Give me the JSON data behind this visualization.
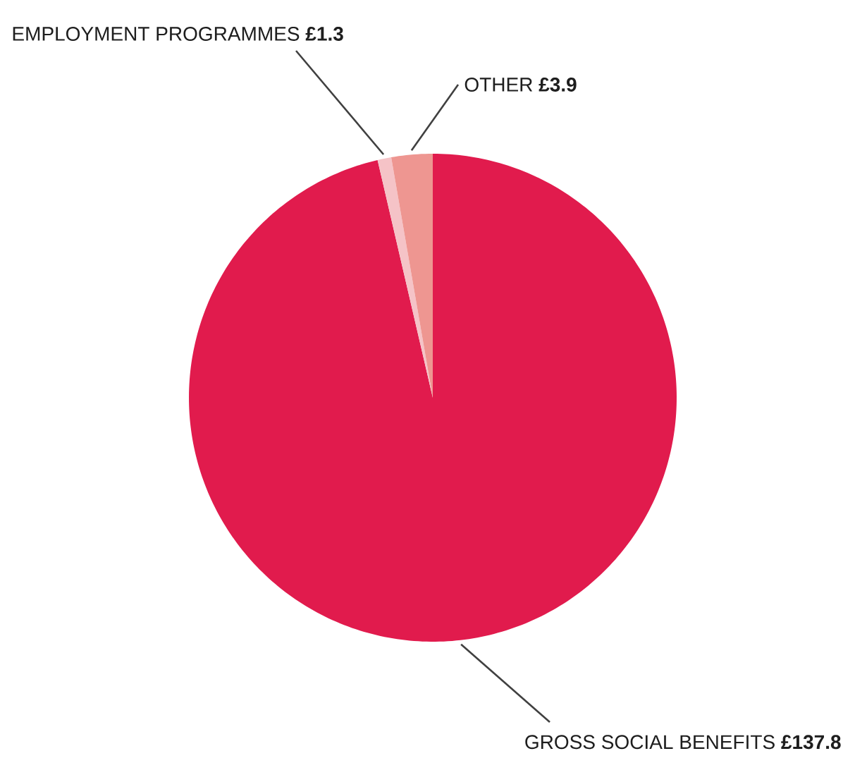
{
  "chart_data": {
    "type": "pie",
    "categories": [
      "GROSS SOCIAL BENEFITS",
      "EMPLOYMENT PROGRAMMES",
      "OTHER"
    ],
    "values": [
      137.8,
      1.3,
      3.9
    ],
    "value_labels": [
      "£137.8",
      "£1.3",
      "£3.9"
    ],
    "colors": [
      "#e11b4d",
      "#f5c3c7",
      "#ee9691"
    ]
  }
}
